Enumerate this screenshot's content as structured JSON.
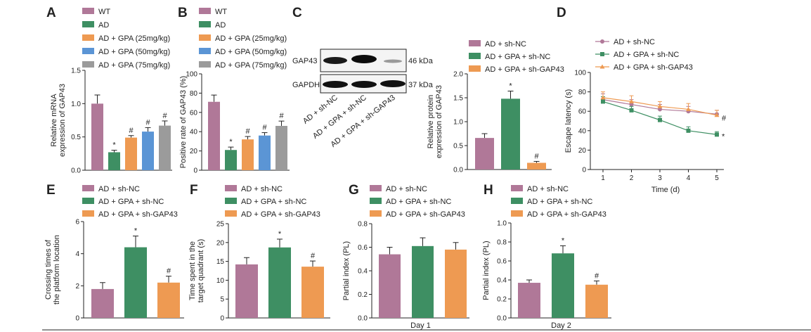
{
  "colors": {
    "WT": "#B07898",
    "AD": "#3E8F63",
    "GPA25": "#EE9A52",
    "GPA50": "#5B95D5",
    "GPA75": "#9B9B9B",
    "sh_NC": "#B07898",
    "GPA_sh_NC": "#3E8F63",
    "GPA_sh_GAP43": "#EE9A52",
    "line_AD": "#B07898",
    "line_GPA_NC": "#3E8F63",
    "line_GPA_GAP43": "#EE9A52"
  },
  "panels": {
    "A": "A",
    "B": "B",
    "C": "C",
    "D": "D",
    "E": "E",
    "F": "F",
    "G": "G",
    "H": "H"
  },
  "legend_ab": [
    "WT",
    "AD",
    "AD + GPA (25mg/kg)",
    "AD + GPA (50mg/kg)",
    "AD + GPA (75mg/kg)"
  ],
  "legend_c": [
    "AD + sh-NC",
    "AD + GPA + sh-NC",
    "AD + GPA + sh-GAP43"
  ],
  "legend_d": [
    "AD + sh-NC",
    "AD + GPA + sh-NC",
    "AD + GPA + sh-GAP43"
  ],
  "legend_efgh": [
    "AD + sh-NC",
    "AD + GPA + sh-NC",
    "AD + GPA + sh-GAP43"
  ],
  "western_blot": {
    "bands": [
      "GAP43",
      "GAPDH"
    ],
    "sizes": [
      "46 kDa",
      "37 kDa"
    ],
    "lanes": [
      "AD + sh-NC",
      "AD + GPA + sh-NC",
      "AD + GPA + sh-GAP43"
    ]
  },
  "chart_data": [
    {
      "panel": "A",
      "type": "bar",
      "categories": [
        "WT",
        "AD",
        "AD + GPA (25mg/kg)",
        "AD + GPA (50mg/kg)",
        "AD + GPA (75mg/kg)"
      ],
      "values": [
        1.0,
        0.27,
        0.49,
        0.58,
        0.67
      ],
      "errors": [
        0.13,
        0.03,
        0.03,
        0.06,
        0.07
      ],
      "annotations": [
        "",
        "*",
        "#",
        "#",
        "#"
      ],
      "ylabel": "Relative mRNA expression of GAP43",
      "ylim": [
        0,
        1.5
      ],
      "yticks": [
        "0.0",
        "0.5",
        "1.0",
        "1.5"
      ]
    },
    {
      "panel": "B",
      "type": "bar",
      "categories": [
        "WT",
        "AD",
        "AD + GPA (25mg/kg)",
        "AD + GPA (50mg/kg)",
        "AD + GPA (75mg/kg)"
      ],
      "values": [
        71,
        21,
        32,
        36,
        46
      ],
      "errors": [
        7,
        3,
        3,
        3,
        5
      ],
      "annotations": [
        "",
        "*",
        "#",
        "#",
        "#"
      ],
      "ylabel": "Positive rate of GAP43 (%)",
      "ylim": [
        0,
        100
      ],
      "yticks": [
        "0",
        "20",
        "40",
        "60",
        "80",
        "100"
      ]
    },
    {
      "panel": "C",
      "type": "bar",
      "categories": [
        "AD + sh-NC",
        "AD + GPA + sh-NC",
        "AD + GPA + sh-GAP43"
      ],
      "values": [
        0.66,
        1.48,
        0.14
      ],
      "errors": [
        0.09,
        0.16,
        0.03
      ],
      "annotations": [
        "",
        "*",
        "#"
      ],
      "ylabel": "Relative protein expression of GAP43",
      "ylim": [
        0,
        2.0
      ],
      "yticks": [
        "0.0",
        "0.5",
        "1.0",
        "1.5",
        "2.0"
      ]
    },
    {
      "panel": "D",
      "type": "line",
      "x": [
        1,
        2,
        3,
        4,
        5
      ],
      "xlabel": "Time (d)",
      "ylabel": "Escape latency (s)",
      "ylim": [
        0,
        100
      ],
      "yticks": [
        "0",
        "20",
        "40",
        "60",
        "80",
        "100"
      ],
      "xticks": [
        "1",
        "2",
        "3",
        "4",
        "5"
      ],
      "series": [
        {
          "name": "AD + sh-NC",
          "values": [
            72,
            67,
            62,
            60,
            57
          ],
          "errors": [
            6,
            5,
            5,
            5,
            4
          ],
          "marker": "circle",
          "end_label": ""
        },
        {
          "name": "AD + GPA + sh-NC",
          "values": [
            70,
            61,
            51,
            40,
            36
          ],
          "errors": [
            5,
            4,
            4,
            4,
            3
          ],
          "marker": "square",
          "end_label": "*"
        },
        {
          "name": "AD + GPA + sh-GAP43",
          "values": [
            74,
            70,
            65,
            62,
            56
          ],
          "errors": [
            6,
            6,
            5,
            6,
            5
          ],
          "marker": "triangle",
          "end_label": "#"
        }
      ]
    },
    {
      "panel": "E",
      "type": "bar",
      "categories": [
        "AD + sh-NC",
        "AD + GPA + sh-NC",
        "AD + GPA + sh-GAP43"
      ],
      "values": [
        1.8,
        4.4,
        2.2
      ],
      "errors": [
        0.4,
        0.7,
        0.4
      ],
      "annotations": [
        "",
        "*",
        "#"
      ],
      "ylabel": "Crossing times of the platform location",
      "ylim": [
        0,
        6
      ],
      "yticks": [
        "0",
        "2",
        "4",
        "6"
      ]
    },
    {
      "panel": "F",
      "type": "bar",
      "categories": [
        "AD + sh-NC",
        "AD + GPA + sh-NC",
        "AD + GPA + sh-GAP43"
      ],
      "values": [
        14.2,
        18.7,
        13.6
      ],
      "errors": [
        1.8,
        2.2,
        1.5
      ],
      "annotations": [
        "",
        "*",
        "#"
      ],
      "ylabel": "Time spent in the target quadrant (s)",
      "ylim": [
        0,
        25
      ],
      "yticks": [
        "0",
        "5",
        "10",
        "15",
        "20",
        "25"
      ]
    },
    {
      "panel": "G",
      "type": "bar",
      "categories": [
        "AD + sh-NC",
        "AD + GPA + sh-NC",
        "AD + GPA + sh-GAP43"
      ],
      "values": [
        0.54,
        0.61,
        0.58
      ],
      "errors": [
        0.06,
        0.07,
        0.06
      ],
      "annotations": [
        "",
        "",
        ""
      ],
      "ylabel": "Partial index (PL)",
      "xlabel": "Day 1",
      "ylim": [
        0,
        0.8
      ],
      "yticks": [
        "0.0",
        "0.2",
        "0.4",
        "0.6",
        "0.8"
      ]
    },
    {
      "panel": "H",
      "type": "bar",
      "categories": [
        "AD + sh-NC",
        "AD + GPA + sh-NC",
        "AD + GPA + sh-GAP43"
      ],
      "values": [
        0.37,
        0.68,
        0.35
      ],
      "errors": [
        0.03,
        0.08,
        0.04
      ],
      "annotations": [
        "",
        "*",
        "#"
      ],
      "ylabel": "Partial index (PL)",
      "xlabel": "Day 2",
      "ylim": [
        0,
        1.0
      ],
      "yticks": [
        "0.0",
        "0.2",
        "0.4",
        "0.6",
        "0.8",
        "1.0"
      ]
    }
  ]
}
